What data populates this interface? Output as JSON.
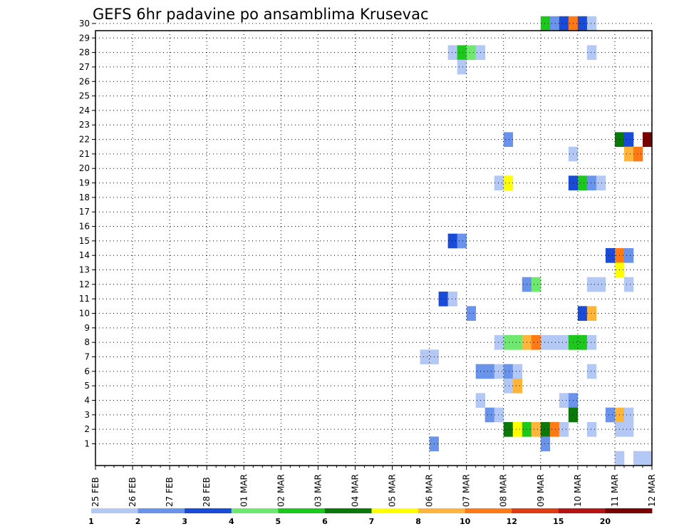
{
  "chart_data": {
    "type": "heatmap",
    "title": "GEFS 6hr padavine po ansamblima Krusevac",
    "y_members": [
      1,
      2,
      3,
      4,
      5,
      6,
      7,
      8,
      9,
      10,
      11,
      12,
      13,
      14,
      15,
      16,
      17,
      18,
      19,
      20,
      21,
      22,
      23,
      24,
      25,
      26,
      27,
      28,
      29,
      30
    ],
    "y_tick_labels": [
      "1",
      "2",
      "3",
      "4",
      "5",
      "6",
      "7",
      "8",
      "9",
      "10",
      "11",
      "12",
      "13",
      "14",
      "15",
      "16",
      "17",
      "18",
      "19",
      "20",
      "21",
      "22",
      "23",
      "24",
      "25",
      "26",
      "27",
      "28",
      "29",
      "30"
    ],
    "x_tick_labels": [
      "25 FEB",
      "26 FEB",
      "27 FEB",
      "28 FEB",
      "01 MAR",
      "02 MAR",
      "03 MAR",
      "04 MAR",
      "05 MAR",
      "06 MAR",
      "07 MAR",
      "08 MAR",
      "09 MAR",
      "10 MAR",
      "11 MAR",
      "12 MAR"
    ],
    "x_range_days": [
      0,
      15
    ],
    "time_step_hours": 6,
    "grid": "dotted",
    "colorbar": {
      "labels": [
        "1",
        "2",
        "3",
        "4",
        "5",
        "6",
        "7",
        "8",
        "10",
        "12",
        "15",
        "20"
      ],
      "colors": [
        "#b4c8f5",
        "#6a93ec",
        "#1a4ad8",
        "#6ee86e",
        "#1cc81c",
        "#0a780a",
        "#ffff00",
        "#ffb43c",
        "#ff7a14",
        "#e03c14",
        "#b41414",
        "#780000"
      ]
    },
    "cells": [
      {
        "member": 30,
        "day": 12.0,
        "cls": 5
      },
      {
        "member": 30,
        "day": 12.25,
        "cls": 2
      },
      {
        "member": 30,
        "day": 12.5,
        "cls": 3
      },
      {
        "member": 30,
        "day": 12.75,
        "cls": 9
      },
      {
        "member": 30,
        "day": 13.0,
        "cls": 3
      },
      {
        "member": 30,
        "day": 13.25,
        "cls": 1
      },
      {
        "member": 28,
        "day": 9.5,
        "cls": 1
      },
      {
        "member": 28,
        "day": 9.75,
        "cls": 5
      },
      {
        "member": 28,
        "day": 10.0,
        "cls": 4
      },
      {
        "member": 28,
        "day": 10.25,
        "cls": 1
      },
      {
        "member": 28,
        "day": 13.25,
        "cls": 1
      },
      {
        "member": 27,
        "day": 9.75,
        "cls": 1
      },
      {
        "member": 22,
        "day": 11.0,
        "cls": 2
      },
      {
        "member": 22,
        "day": 14.0,
        "cls": 6
      },
      {
        "member": 22,
        "day": 14.25,
        "cls": 3
      },
      {
        "member": 22,
        "day": 14.75,
        "cls": 12
      },
      {
        "member": 21,
        "day": 12.75,
        "cls": 1
      },
      {
        "member": 21,
        "day": 14.25,
        "cls": 8
      },
      {
        "member": 21,
        "day": 14.5,
        "cls": 9
      },
      {
        "member": 19,
        "day": 10.75,
        "cls": 1
      },
      {
        "member": 19,
        "day": 11.0,
        "cls": 7
      },
      {
        "member": 19,
        "day": 12.75,
        "cls": 3
      },
      {
        "member": 19,
        "day": 13.0,
        "cls": 5
      },
      {
        "member": 19,
        "day": 13.25,
        "cls": 2
      },
      {
        "member": 19,
        "day": 13.5,
        "cls": 1
      },
      {
        "member": 15,
        "day": 9.5,
        "cls": 3
      },
      {
        "member": 15,
        "day": 9.75,
        "cls": 2
      },
      {
        "member": 14,
        "day": 13.75,
        "cls": 3
      },
      {
        "member": 14,
        "day": 14.0,
        "cls": 9
      },
      {
        "member": 14,
        "day": 14.25,
        "cls": 2
      },
      {
        "member": 13,
        "day": 14.0,
        "cls": 7
      },
      {
        "member": 12,
        "day": 11.5,
        "cls": 2
      },
      {
        "member": 12,
        "day": 11.75,
        "cls": 4
      },
      {
        "member": 12,
        "day": 13.25,
        "cls": 1
      },
      {
        "member": 12,
        "day": 13.5,
        "cls": 1
      },
      {
        "member": 12,
        "day": 14.25,
        "cls": 1
      },
      {
        "member": 11,
        "day": 9.25,
        "cls": 3
      },
      {
        "member": 11,
        "day": 9.5,
        "cls": 1
      },
      {
        "member": 10,
        "day": 10.0,
        "cls": 2
      },
      {
        "member": 10,
        "day": 13.0,
        "cls": 3
      },
      {
        "member": 10,
        "day": 13.25,
        "cls": 8
      },
      {
        "member": 8,
        "day": 10.75,
        "cls": 1
      },
      {
        "member": 8,
        "day": 11.0,
        "cls": 4
      },
      {
        "member": 8,
        "day": 11.25,
        "cls": 4
      },
      {
        "member": 8,
        "day": 11.5,
        "cls": 8
      },
      {
        "member": 8,
        "day": 11.75,
        "cls": 9
      },
      {
        "member": 8,
        "day": 12.0,
        "cls": 1
      },
      {
        "member": 8,
        "day": 12.25,
        "cls": 1
      },
      {
        "member": 8,
        "day": 12.5,
        "cls": 1
      },
      {
        "member": 8,
        "day": 12.75,
        "cls": 5
      },
      {
        "member": 8,
        "day": 13.0,
        "cls": 5
      },
      {
        "member": 8,
        "day": 13.25,
        "cls": 1
      },
      {
        "member": 7,
        "day": 8.75,
        "cls": 1
      },
      {
        "member": 7,
        "day": 9.0,
        "cls": 1
      },
      {
        "member": 6,
        "day": 10.25,
        "cls": 2
      },
      {
        "member": 6,
        "day": 10.5,
        "cls": 2
      },
      {
        "member": 6,
        "day": 10.75,
        "cls": 1
      },
      {
        "member": 6,
        "day": 11.0,
        "cls": 2
      },
      {
        "member": 6,
        "day": 11.25,
        "cls": 1
      },
      {
        "member": 6,
        "day": 13.25,
        "cls": 1
      },
      {
        "member": 5,
        "day": 11.0,
        "cls": 1
      },
      {
        "member": 5,
        "day": 11.25,
        "cls": 8
      },
      {
        "member": 4,
        "day": 10.25,
        "cls": 1
      },
      {
        "member": 4,
        "day": 12.5,
        "cls": 1
      },
      {
        "member": 4,
        "day": 12.75,
        "cls": 2
      },
      {
        "member": 3,
        "day": 10.5,
        "cls": 2
      },
      {
        "member": 3,
        "day": 10.75,
        "cls": 1
      },
      {
        "member": 3,
        "day": 12.75,
        "cls": 6
      },
      {
        "member": 3,
        "day": 13.75,
        "cls": 2
      },
      {
        "member": 3,
        "day": 14.0,
        "cls": 8
      },
      {
        "member": 3,
        "day": 14.25,
        "cls": 1
      },
      {
        "member": 2,
        "day": 11.0,
        "cls": 6
      },
      {
        "member": 2,
        "day": 11.25,
        "cls": 7
      },
      {
        "member": 2,
        "day": 11.5,
        "cls": 5
      },
      {
        "member": 2,
        "day": 11.75,
        "cls": 8
      },
      {
        "member": 2,
        "day": 12.0,
        "cls": 6
      },
      {
        "member": 2,
        "day": 12.25,
        "cls": 9
      },
      {
        "member": 2,
        "day": 12.5,
        "cls": 1
      },
      {
        "member": 2,
        "day": 13.25,
        "cls": 1
      },
      {
        "member": 2,
        "day": 14.0,
        "cls": 1
      },
      {
        "member": 2,
        "day": 14.25,
        "cls": 1
      },
      {
        "member": 1,
        "day": 9.0,
        "cls": 2
      },
      {
        "member": 1,
        "day": 12.0,
        "cls": 2
      },
      {
        "member": 0,
        "day": 14.0,
        "cls": 1
      },
      {
        "member": 0,
        "day": 14.5,
        "cls": 1
      },
      {
        "member": 0,
        "day": 14.75,
        "cls": 1
      }
    ]
  }
}
